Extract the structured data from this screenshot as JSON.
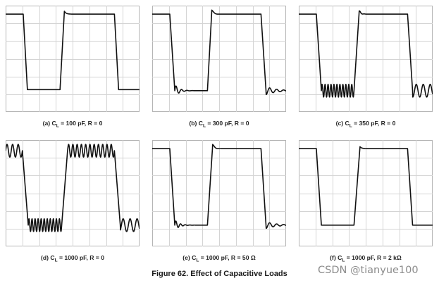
{
  "figure": {
    "title": "Figure 62. Effect of Capacitive Loads",
    "watermark": "CSDN @tianyue100"
  },
  "chart_data": [
    {
      "type": "line",
      "caption": {
        "prefix": "(a) C",
        "sub": "L",
        "suffix": " = 100 pF, R = 0"
      },
      "grid": true,
      "x_range": [
        0,
        8
      ],
      "y_range": [
        0,
        5
      ],
      "waveform": {
        "period": 8,
        "high_start": 3.6,
        "high_end": 6.5,
        "fall_start": 1.05,
        "fall_end": 1.3,
        "rise_start": 3.25,
        "rise_end": 3.5,
        "high": 4.6,
        "low": 1.05
      },
      "ringing": {
        "after_fall": 0,
        "after_rise": 0,
        "overshoot": 0.15,
        "cycles": 0
      }
    },
    {
      "type": "line",
      "caption": {
        "prefix": "(b) C",
        "sub": "L",
        "suffix": " = 300 pF, R = 0"
      },
      "grid": true,
      "x_range": [
        0,
        8
      ],
      "y_range": [
        0,
        5
      ],
      "waveform": {
        "period": 8,
        "high_start": 3.6,
        "high_end": 6.5,
        "fall_start": 1.05,
        "fall_end": 1.35,
        "rise_start": 3.3,
        "rise_end": 3.55,
        "high": 4.6,
        "low": 1.0
      },
      "ringing": {
        "after_fall": 0.3,
        "after_rise": 0.1,
        "overshoot": 0.2,
        "cycles": 6
      }
    },
    {
      "type": "line",
      "caption": {
        "prefix": "(c) C",
        "sub": "L",
        "suffix": " = 350 pF, R = 0"
      },
      "grid": true,
      "x_range": [
        0,
        8
      ],
      "y_range": [
        0,
        5
      ],
      "waveform": {
        "period": 8,
        "high_start": 3.6,
        "high_end": 6.5,
        "fall_start": 1.05,
        "fall_end": 1.35,
        "rise_start": 3.3,
        "rise_end": 3.6,
        "high": 4.6,
        "low": 1.0
      },
      "ringing": {
        "after_fall": 0.3,
        "after_rise": 0.08,
        "overshoot": 0.15,
        "cycles": 11
      }
    },
    {
      "type": "line",
      "caption": {
        "prefix": "(d) C",
        "sub": "L",
        "suffix": " = 1000 pF, R = 0"
      },
      "grid": true,
      "x_range": [
        0,
        8
      ],
      "y_range": [
        0,
        5
      ],
      "waveform": {
        "period": 8,
        "high_start": 3.65,
        "high_end": 6.5,
        "fall_start": 1.0,
        "fall_end": 1.35,
        "rise_start": 3.35,
        "rise_end": 3.7,
        "high": 4.5,
        "low": 1.0
      },
      "ringing": {
        "after_fall": 0.3,
        "after_rise": 0.3,
        "overshoot": 0.0,
        "cycles": 11
      }
    },
    {
      "type": "line",
      "caption": {
        "prefix": "(e) C",
        "sub": "L",
        "suffix": " = 1000 pF, R = 50 Ω"
      },
      "grid": true,
      "x_range": [
        0,
        8
      ],
      "y_range": [
        0,
        5
      ],
      "waveform": {
        "period": 8,
        "high_start": 3.6,
        "high_end": 6.5,
        "fall_start": 1.05,
        "fall_end": 1.35,
        "rise_start": 3.3,
        "rise_end": 3.6,
        "high": 4.6,
        "low": 1.0
      },
      "ringing": {
        "after_fall": 0.25,
        "after_rise": 0.1,
        "overshoot": 0.2,
        "cycles": 7
      }
    },
    {
      "type": "line",
      "caption": {
        "prefix": "(f) C",
        "sub": "L",
        "suffix": " = 1000 pF, R = 2 kΩ"
      },
      "grid": true,
      "x_range": [
        0,
        8
      ],
      "y_range": [
        0,
        5
      ],
      "waveform": {
        "period": 8,
        "high_start": 3.6,
        "high_end": 6.5,
        "fall_start": 1.05,
        "fall_end": 1.35,
        "rise_start": 3.3,
        "rise_end": 3.65,
        "high": 4.6,
        "low": 1.0
      },
      "ringing": {
        "after_fall": 0,
        "after_rise": 0,
        "overshoot": 0.1,
        "cycles": 0
      }
    }
  ]
}
